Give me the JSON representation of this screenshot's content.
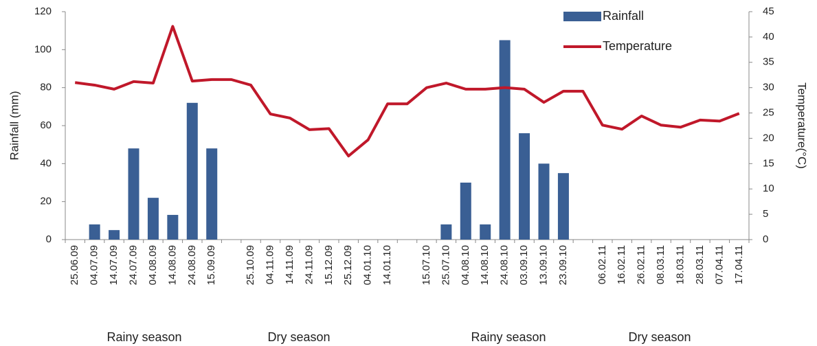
{
  "chart_data": {
    "type": "bar_line",
    "categories": [
      "25.06.09",
      "04.07.09",
      "14.07.09",
      "24.07.09",
      "04.08.09",
      "14.08.09",
      "24.08.09",
      "15.09.09",
      null,
      "25.10.09",
      "04.11.09",
      "14.11.09",
      "24.11.09",
      "15.12.09",
      "25.12.09",
      "04.01.10",
      "14.01.10",
      null,
      "15.07.10",
      "25.07.10",
      "04.08.10",
      "14.08.10",
      "24.08.10",
      "03.09.10",
      "13.09.10",
      "23.09.10",
      null,
      "06.02.11",
      "16.02.11",
      "26.02.11",
      "08.03.11",
      "18.03.11",
      "28.03.11",
      "07.04.11",
      "17.04.11"
    ],
    "series": [
      {
        "name": "Rainfall",
        "type": "bar",
        "color": "#3a5f94",
        "values": [
          0,
          8,
          5,
          48,
          22,
          13,
          72,
          48,
          null,
          0,
          0,
          0,
          0,
          0,
          0,
          0,
          0,
          null,
          0,
          8,
          30,
          8,
          105,
          56,
          40,
          35,
          null,
          0,
          0,
          0,
          0,
          0,
          0,
          0,
          0
        ]
      },
      {
        "name": "Temperature",
        "type": "line",
        "axis": "y2",
        "color": "#c0182a",
        "values": [
          31.0,
          30.5,
          29.7,
          31.2,
          30.9,
          42.1,
          31.3,
          31.6,
          31.6,
          30.5,
          24.8,
          24.0,
          21.7,
          21.9,
          16.5,
          19.7,
          26.8,
          26.8,
          30.0,
          30.9,
          29.7,
          29.7,
          30.0,
          29.7,
          27.1,
          29.3,
          29.3,
          22.6,
          21.8,
          24.4,
          22.6,
          22.2,
          23.6,
          23.4,
          24.9
        ]
      }
    ],
    "ylabel": "Rainfall (mm)",
    "y2label": "Temperature(°C)",
    "ylim": [
      0,
      120
    ],
    "yticks": [
      0,
      20,
      40,
      60,
      80,
      100,
      120
    ],
    "y2lim": [
      0,
      45
    ],
    "y2ticks": [
      0,
      5,
      10,
      15,
      20,
      25,
      30,
      35,
      40,
      45
    ],
    "annotations": [
      "Rainy season",
      "Dry season",
      "Rainy season",
      "Dry season"
    ],
    "legend": "top-right",
    "grid": false
  }
}
